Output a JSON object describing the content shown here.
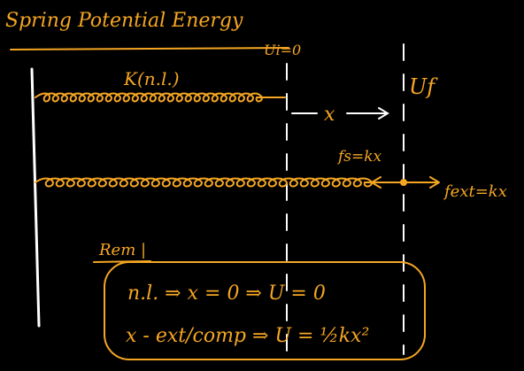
{
  "title": "Spring Potential Energy",
  "labels": {
    "natural_length": "K(n.l.)",
    "initial_energy": "Ui=0",
    "final_energy": "Uf",
    "displacement": "x",
    "spring_force": "fs=kx",
    "external_force": "fext=kx"
  },
  "remark": {
    "heading": "Rem |",
    "line1": "n.l. ⇒ x = 0 ⇒ U = 0",
    "line2": "x - ext/comp ⇒ U = ½kx²"
  },
  "colors": {
    "background": "#000000",
    "ink": "#f5a623",
    "wall": "#ffffff"
  }
}
